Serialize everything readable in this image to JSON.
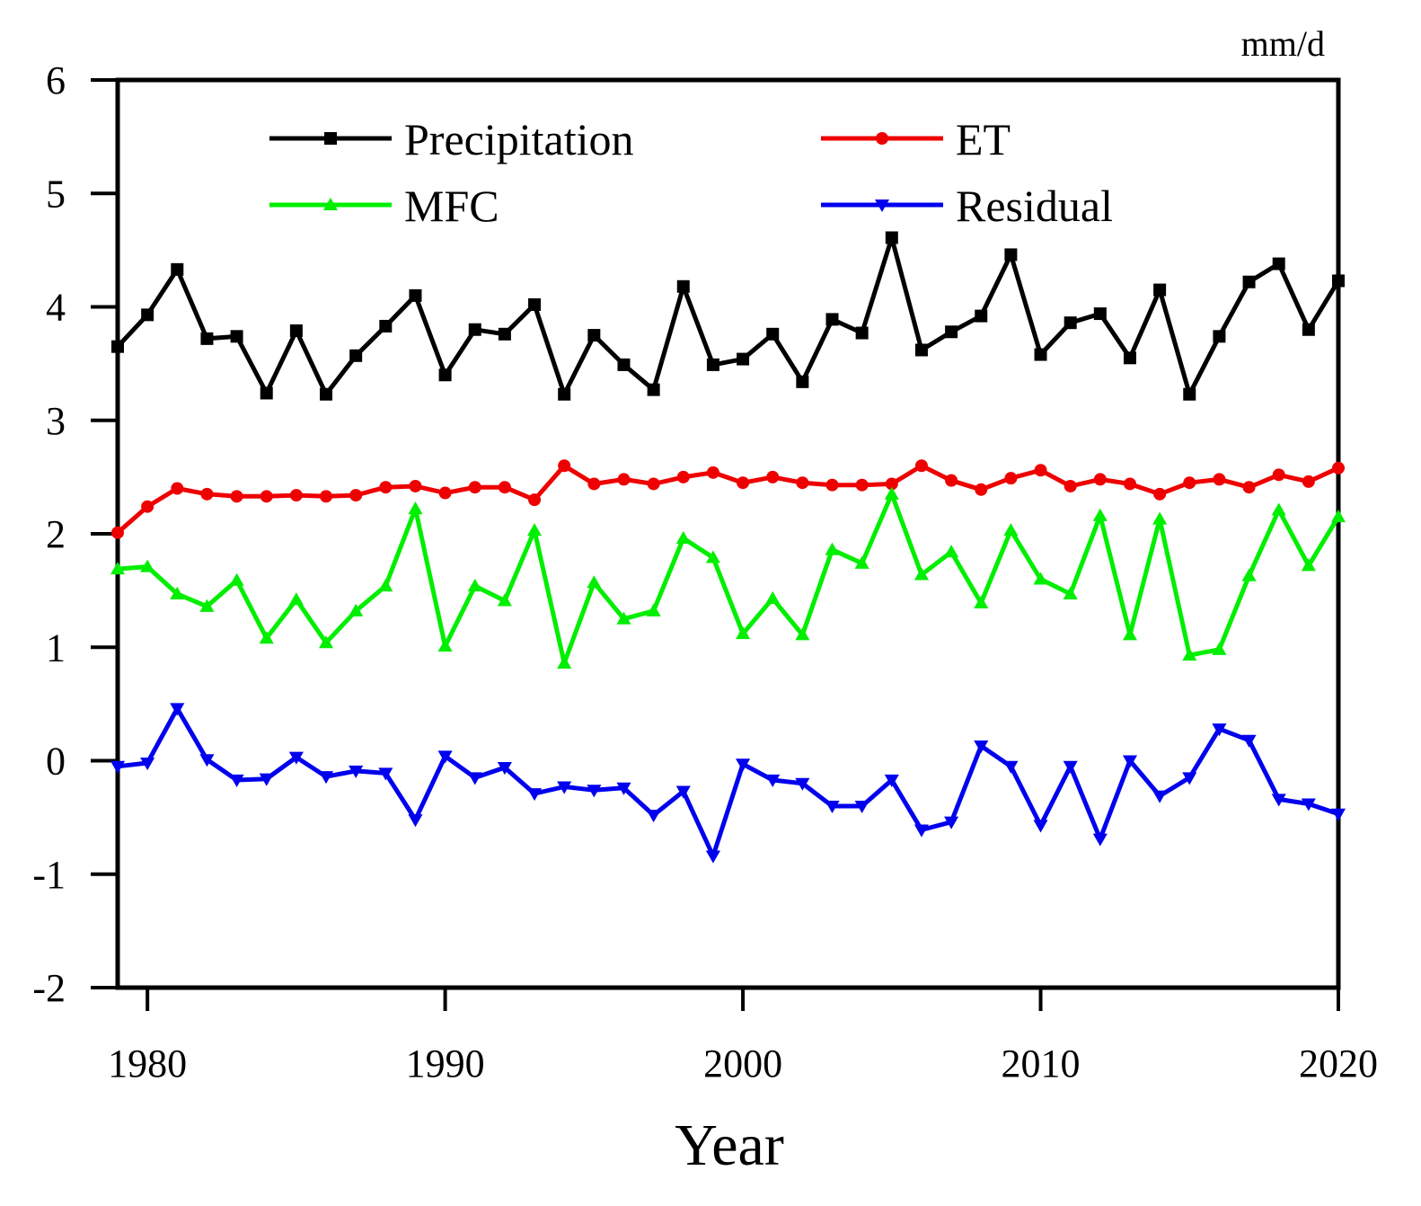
{
  "chart_data": {
    "type": "line",
    "unit_label": "mm/d",
    "xlabel": "Year",
    "ylabel": "",
    "xlim": [
      1979,
      2020
    ],
    "ylim": [
      -2,
      6
    ],
    "xticks": [
      1980,
      1990,
      2000,
      2010,
      2020
    ],
    "yticks": [
      -2,
      -1,
      0,
      1,
      2,
      3,
      4,
      5,
      6
    ],
    "legend_position": "top",
    "x": [
      1979,
      1980,
      1981,
      1982,
      1983,
      1984,
      1985,
      1986,
      1987,
      1988,
      1989,
      1990,
      1991,
      1992,
      1993,
      1994,
      1995,
      1996,
      1997,
      1998,
      1999,
      2000,
      2001,
      2002,
      2003,
      2004,
      2005,
      2006,
      2007,
      2008,
      2009,
      2010,
      2011,
      2012,
      2013,
      2014,
      2015,
      2016,
      2017,
      2018,
      2019,
      2020
    ],
    "series": [
      {
        "name": "Precipitation",
        "color": "#000000",
        "marker": "square",
        "values": [
          3.65,
          3.93,
          4.33,
          3.72,
          3.74,
          3.24,
          3.79,
          3.23,
          3.57,
          3.83,
          4.1,
          3.4,
          3.8,
          3.76,
          4.02,
          3.23,
          3.75,
          3.49,
          3.27,
          4.18,
          3.49,
          3.54,
          3.76,
          3.34,
          3.89,
          3.77,
          4.61,
          3.62,
          3.78,
          3.92,
          4.46,
          3.58,
          3.86,
          3.94,
          3.55,
          4.15,
          3.23,
          3.74,
          4.22,
          4.38,
          3.8,
          4.23
        ]
      },
      {
        "name": "ET",
        "color": "#ee0000",
        "marker": "circle",
        "values": [
          2.01,
          2.24,
          2.4,
          2.35,
          2.33,
          2.33,
          2.34,
          2.33,
          2.34,
          2.41,
          2.42,
          2.36,
          2.41,
          2.41,
          2.3,
          2.6,
          2.44,
          2.48,
          2.44,
          2.5,
          2.54,
          2.45,
          2.5,
          2.45,
          2.43,
          2.43,
          2.44,
          2.6,
          2.47,
          2.39,
          2.49,
          2.56,
          2.42,
          2.48,
          2.44,
          2.35,
          2.45,
          2.48,
          2.41,
          2.52,
          2.46,
          2.58
        ]
      },
      {
        "name": "MFC",
        "color": "#00ee00",
        "marker": "triangle-up",
        "values": [
          1.69,
          1.71,
          1.47,
          1.36,
          1.59,
          1.08,
          1.42,
          1.04,
          1.32,
          1.54,
          2.22,
          1.01,
          1.54,
          1.41,
          2.03,
          0.86,
          1.57,
          1.25,
          1.32,
          1.96,
          1.79,
          1.12,
          1.43,
          1.11,
          1.86,
          1.74,
          2.35,
          1.64,
          1.84,
          1.39,
          2.03,
          1.6,
          1.47,
          2.16,
          1.11,
          2.13,
          0.93,
          0.98,
          1.63,
          2.21,
          1.72,
          2.15
        ]
      },
      {
        "name": "Residual",
        "color": "#0000ee",
        "marker": "triangle-down",
        "values": [
          -0.05,
          -0.02,
          0.46,
          0.01,
          -0.17,
          -0.16,
          0.03,
          -0.14,
          -0.09,
          -0.11,
          -0.52,
          0.04,
          -0.15,
          -0.06,
          -0.29,
          -0.23,
          -0.26,
          -0.24,
          -0.48,
          -0.27,
          -0.84,
          -0.03,
          -0.17,
          -0.2,
          -0.4,
          -0.4,
          -0.17,
          -0.61,
          -0.54,
          0.13,
          -0.05,
          -0.57,
          -0.05,
          -0.69,
          0.0,
          -0.31,
          -0.15,
          0.28,
          0.18,
          -0.34,
          -0.38,
          -0.47
        ]
      }
    ]
  }
}
